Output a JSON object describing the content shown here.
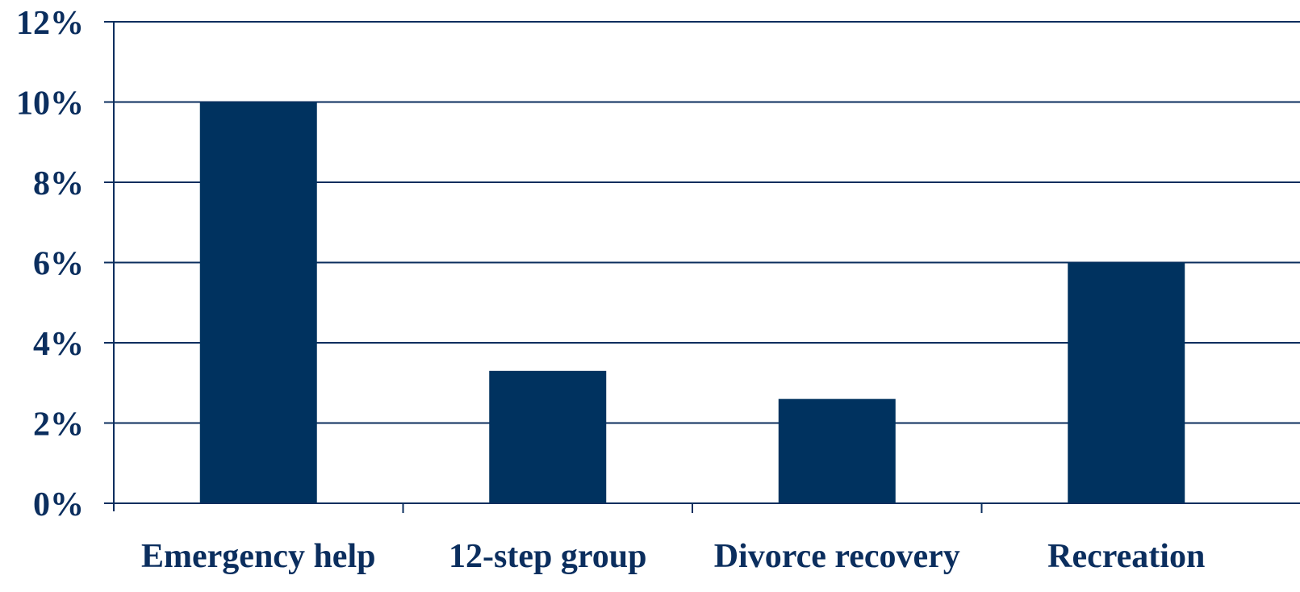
{
  "chart_data": {
    "type": "bar",
    "categories": [
      "Emergency help",
      "12-step group",
      "Divorce recovery",
      "Recreation"
    ],
    "values": [
      10.0,
      3.3,
      2.6,
      6.0
    ],
    "y_tick_labels": [
      "0%",
      "2%",
      "4%",
      "6%",
      "8%",
      "10%",
      "12%"
    ],
    "y_ticks": [
      0,
      2,
      4,
      6,
      8,
      10,
      12
    ],
    "ylim": [
      0,
      12
    ],
    "title": "",
    "xlabel": "",
    "ylabel": "",
    "grid": true,
    "legend": "none",
    "bar_color": "#00325f",
    "axis_color": "#0b2e5e"
  }
}
